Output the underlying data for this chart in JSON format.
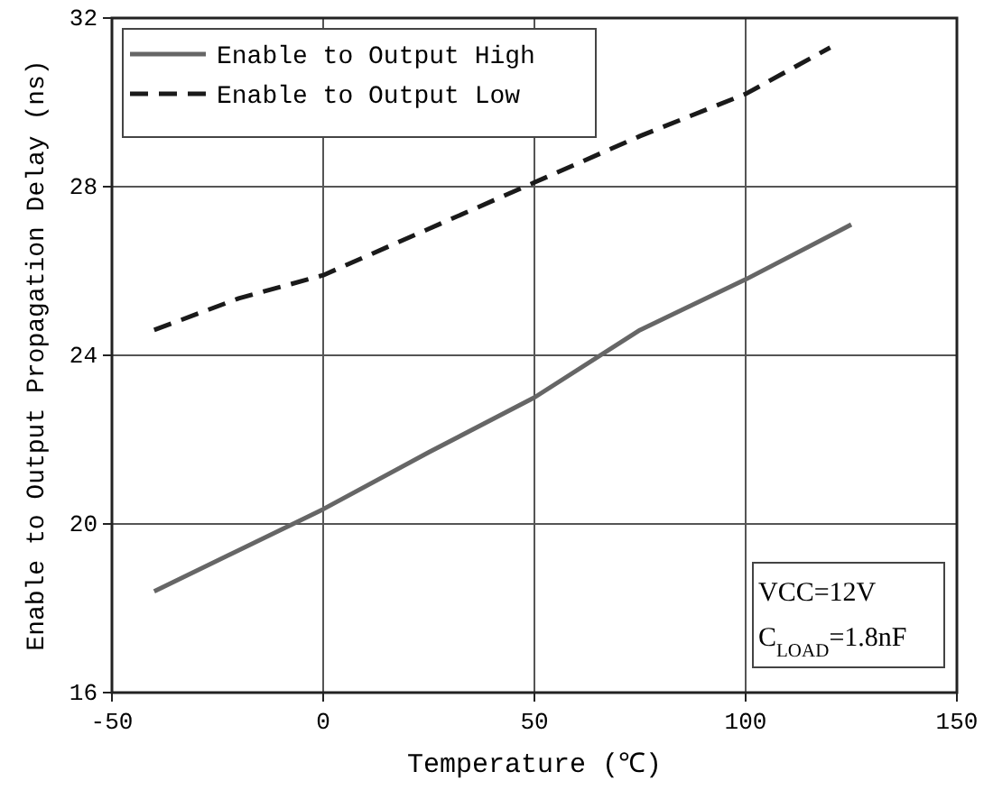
{
  "chart_data": {
    "type": "line",
    "xlabel": "Temperature (℃)",
    "ylabel": "Enable to Output Propagation Delay (ns)",
    "xlim": [
      -50,
      150
    ],
    "xticks": [
      -50,
      0,
      50,
      100,
      150
    ],
    "ylim": [
      16,
      32
    ],
    "yticks": [
      16,
      20,
      24,
      28,
      32
    ],
    "grid": true,
    "legend": "top left",
    "series": [
      {
        "name": "Enable to Output High",
        "color": "#666666",
        "line_style": "solid",
        "x": [
          -40,
          0,
          25,
          50,
          75,
          100,
          125
        ],
        "values": [
          18.4,
          20.35,
          21.7,
          23.0,
          24.6,
          25.8,
          27.1
        ]
      },
      {
        "name": "Enable to Output Low",
        "color": "#1a1a1a",
        "line_style": "dashed",
        "x": [
          -40,
          -20,
          0,
          25,
          50,
          75,
          100,
          120
        ],
        "values": [
          24.6,
          25.35,
          25.9,
          27.0,
          28.1,
          29.2,
          30.2,
          31.3
        ]
      }
    ],
    "annotations": [
      "VCC=12V",
      "C$_{LOAD}$=1.8nF"
    ]
  }
}
